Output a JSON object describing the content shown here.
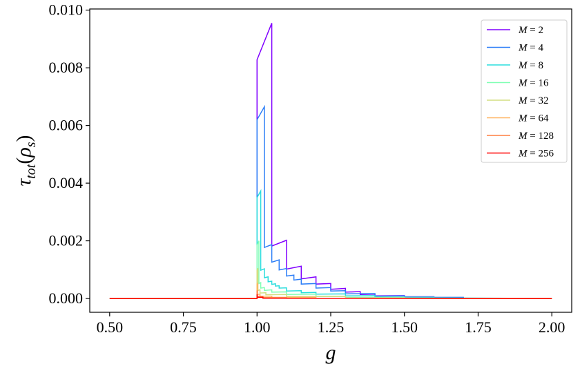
{
  "chart_data": {
    "type": "line",
    "title": "",
    "xlabel": "g",
    "ylabel": "τ_tot(ρ_s)",
    "xlim": [
      0.4325,
      2.0675
    ],
    "ylim": [
      -0.000478,
      0.01004
    ],
    "xticks": [
      0.5,
      0.75,
      1.0,
      1.25,
      1.5,
      1.75,
      2.0
    ],
    "xtick_labels": [
      "0.50",
      "0.75",
      "1.00",
      "1.25",
      "1.50",
      "1.75",
      "2.00"
    ],
    "yticks": [
      0.0,
      0.002,
      0.004,
      0.006,
      0.008,
      0.01
    ],
    "ytick_labels": [
      "0.000",
      "0.002",
      "0.004",
      "0.006",
      "0.008",
      "0.010"
    ],
    "grid": false,
    "legend_position": "top-right",
    "series": [
      {
        "name": "M = 2",
        "label_var": "M",
        "label_val": "2",
        "color": "#8000ff",
        "x": [
          0.5,
          1.0,
          1.0,
          1.05,
          1.05,
          1.1,
          1.1,
          1.15,
          1.15,
          1.2,
          1.2,
          1.25,
          1.25,
          1.3,
          1.3,
          1.35,
          1.35,
          1.4,
          1.4,
          1.5,
          1.5,
          1.6,
          1.6,
          1.7,
          1.7,
          2.0
        ],
        "y": [
          0.0,
          0.0,
          0.00828,
          0.00955,
          0.00182,
          0.00202,
          0.00102,
          0.00112,
          0.00068,
          0.00075,
          0.0005,
          0.00052,
          0.00032,
          0.00035,
          0.00022,
          0.00024,
          0.00014,
          0.00015,
          9e-05,
          0.0001,
          6e-05,
          6e-05,
          3e-05,
          3e-05,
          1e-05,
          0.0
        ]
      },
      {
        "name": "M = 4",
        "label_var": "M",
        "label_val": "4",
        "color": "#2c7ef7",
        "x": [
          0.5,
          1.0,
          1.0,
          1.025,
          1.025,
          1.05,
          1.05,
          1.075,
          1.075,
          1.1,
          1.1,
          1.125,
          1.125,
          1.15,
          1.15,
          1.2,
          1.2,
          1.25,
          1.25,
          1.3,
          1.3,
          1.4,
          1.4,
          1.5,
          1.5,
          1.7,
          1.7,
          2.0
        ],
        "y": [
          0.0,
          0.0,
          0.0062,
          0.00665,
          0.00177,
          0.00187,
          0.00126,
          0.00134,
          0.00099,
          0.00104,
          0.00078,
          0.00081,
          0.00064,
          0.00067,
          0.0005,
          0.00052,
          0.00036,
          0.00038,
          0.00026,
          0.00027,
          0.00016,
          0.00017,
          8e-05,
          9e-05,
          4e-05,
          4e-05,
          1e-05,
          0.0
        ]
      },
      {
        "name": "M = 8",
        "label_var": "M",
        "label_val": "8",
        "color": "#2adddd",
        "x": [
          0.5,
          1.0,
          1.0,
          1.0125,
          1.0125,
          1.025,
          1.025,
          1.0375,
          1.0375,
          1.05,
          1.05,
          1.0625,
          1.0625,
          1.075,
          1.075,
          1.1,
          1.1,
          1.15,
          1.15,
          1.2,
          1.2,
          1.3,
          1.3,
          1.4,
          1.4,
          1.6,
          1.6,
          2.0
        ],
        "y": [
          0.0,
          0.0,
          0.0035,
          0.00373,
          0.00098,
          0.00103,
          0.00072,
          0.00075,
          0.00058,
          0.0006,
          0.00049,
          0.00051,
          0.00043,
          0.00044,
          0.00036,
          0.00037,
          0.00026,
          0.00027,
          0.0002,
          0.00021,
          0.00015,
          0.00016,
          9e-05,
          0.0001,
          5e-05,
          5e-05,
          2e-05,
          0.0
        ]
      },
      {
        "name": "M = 16",
        "label_var": "M",
        "label_val": "16",
        "color": "#80ffb4",
        "x": [
          0.5,
          1.0,
          1.0,
          1.00625,
          1.00625,
          1.0125,
          1.0125,
          1.025,
          1.025,
          1.05,
          1.05,
          1.1,
          1.1,
          1.2,
          1.2,
          1.3,
          1.3,
          1.5,
          1.5,
          2.0
        ],
        "y": [
          0.0,
          0.0,
          0.00185,
          0.002,
          0.00052,
          0.00055,
          0.00036,
          0.00038,
          0.00028,
          0.0003,
          0.00022,
          0.00023,
          0.00014,
          0.00015,
          8e-05,
          8e-05,
          4e-05,
          4e-05,
          1e-05,
          0.0
        ]
      },
      {
        "name": "M = 32",
        "label_var": "M",
        "label_val": "32",
        "color": "#d4dd80",
        "x": [
          0.5,
          1.0,
          1.0,
          1.003,
          1.003,
          1.01,
          1.01,
          1.03,
          1.03,
          1.1,
          1.1,
          1.3,
          1.3,
          2.0
        ],
        "y": [
          0.0,
          0.0,
          0.00098,
          0.00105,
          0.00028,
          0.0003,
          0.00019,
          0.0002,
          0.00013,
          0.00014,
          7e-05,
          7e-05,
          2e-05,
          0.0
        ]
      },
      {
        "name": "M = 64",
        "label_var": "M",
        "label_val": "64",
        "color": "#ffb360",
        "x": [
          0.5,
          1.0,
          1.0,
          1.0015,
          1.0015,
          1.01,
          1.01,
          1.05,
          1.05,
          1.2,
          1.2,
          2.0
        ],
        "y": [
          0.0,
          0.0,
          0.0005,
          0.00054,
          0.00014,
          0.00015,
          8e-05,
          8e-05,
          4e-05,
          4e-05,
          1e-05,
          0.0
        ]
      },
      {
        "name": "M = 128",
        "label_var": "M",
        "label_val": "128",
        "color": "#ff7e41",
        "x": [
          0.5,
          1.0,
          1.0,
          1.0008,
          1.0008,
          1.02,
          1.02,
          1.1,
          1.1,
          2.0
        ],
        "y": [
          0.0,
          0.0,
          0.00026,
          0.00028,
          7e-05,
          7e-05,
          3e-05,
          3e-05,
          1e-05,
          0.0
        ]
      },
      {
        "name": "M = 256",
        "label_var": "M",
        "label_val": "256",
        "color": "#ff0000",
        "x": [
          0.5,
          1.0,
          1.0,
          1.0004,
          1.0004,
          1.02,
          1.02,
          2.0
        ],
        "y": [
          0.0,
          0.0,
          0.00013,
          0.00014,
          4e-05,
          4e-05,
          1e-05,
          0.0
        ]
      }
    ]
  }
}
